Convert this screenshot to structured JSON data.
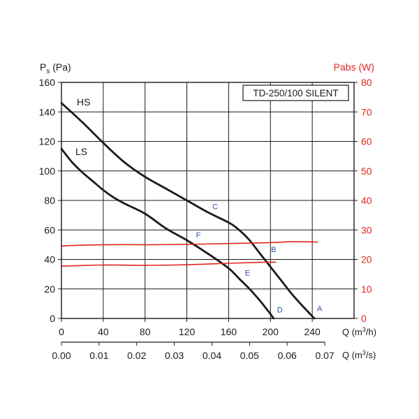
{
  "chart_data": {
    "type": "line",
    "title": "TD-250/100 SILENT",
    "left_axis": {
      "label": "Ps (Pa)",
      "label_main": "P",
      "label_sub": "s",
      "label_rest": " (Pa)",
      "range": [
        0,
        160
      ],
      "ticks": [
        0,
        20,
        40,
        60,
        80,
        100,
        120,
        140,
        160
      ]
    },
    "right_axis": {
      "label": "Pabs (W)",
      "range": [
        0,
        80
      ],
      "ticks": [
        0,
        10,
        20,
        30,
        40,
        50,
        60,
        70,
        80
      ],
      "color": "#e0261f"
    },
    "x_axis": {
      "label": "Q (m3/h)",
      "label_pre": "Q (m",
      "label_sup": "3",
      "label_post": "/h)",
      "range": [
        0,
        280
      ],
      "ticks": [
        0,
        40,
        80,
        120,
        160,
        200,
        240
      ]
    },
    "x2_axis": {
      "label": "Q (m3/s)",
      "label_pre": "Q (m",
      "label_sup": "3",
      "label_post": "/s)",
      "ticks": [
        "0.00",
        "0.01",
        "0.02",
        "0.03",
        "0.04",
        "0.05",
        "0.06",
        "0.07"
      ],
      "tick_values_m3h": [
        0,
        36,
        72,
        108,
        144,
        180,
        216,
        252
      ]
    },
    "grid": true,
    "series": [
      {
        "name": "HS",
        "axis": "left",
        "color": "#1a1a1a",
        "points": [
          [
            0,
            146
          ],
          [
            20,
            133
          ],
          [
            40,
            119
          ],
          [
            60,
            106
          ],
          [
            80,
            96
          ],
          [
            100,
            88
          ],
          [
            120,
            80
          ],
          [
            140,
            72
          ],
          [
            160,
            65
          ],
          [
            170,
            60
          ],
          [
            180,
            53
          ],
          [
            190,
            44
          ],
          [
            200,
            35
          ],
          [
            210,
            26
          ],
          [
            220,
            17
          ],
          [
            230,
            9
          ],
          [
            242,
            0
          ]
        ]
      },
      {
        "name": "LS",
        "axis": "left",
        "color": "#1a1a1a",
        "points": [
          [
            0,
            115
          ],
          [
            10,
            106
          ],
          [
            20,
            99
          ],
          [
            30,
            93
          ],
          [
            40,
            87
          ],
          [
            50,
            82
          ],
          [
            60,
            78
          ],
          [
            80,
            71
          ],
          [
            100,
            61
          ],
          [
            120,
            53
          ],
          [
            140,
            44
          ],
          [
            160,
            34
          ],
          [
            170,
            27
          ],
          [
            180,
            20
          ],
          [
            190,
            12
          ],
          [
            200,
            3
          ],
          [
            203,
            0
          ]
        ]
      },
      {
        "name": "",
        "axis": "right",
        "color": "#e0261f",
        "points": [
          [
            0,
            24.6
          ],
          [
            40,
            25.0
          ],
          [
            80,
            25.0
          ],
          [
            120,
            25.1
          ],
          [
            160,
            25.4
          ],
          [
            200,
            25.7
          ],
          [
            220,
            26.0
          ],
          [
            245,
            25.9
          ]
        ]
      },
      {
        "name": "",
        "axis": "right",
        "color": "#e0261f",
        "points": [
          [
            0,
            17.7
          ],
          [
            40,
            18.1
          ],
          [
            80,
            18.0
          ],
          [
            120,
            18.2
          ],
          [
            160,
            18.7
          ],
          [
            190,
            19.0
          ],
          [
            205,
            19.1
          ]
        ]
      }
    ],
    "point_labels": [
      {
        "text": "A",
        "x": 247,
        "y": 5,
        "axis": "left"
      },
      {
        "text": "B",
        "x": 203,
        "y": 45,
        "axis": "left"
      },
      {
        "text": "C",
        "x": 147,
        "y": 74,
        "axis": "left"
      },
      {
        "text": "D",
        "x": 209,
        "y": 4,
        "axis": "left"
      },
      {
        "text": "E",
        "x": 178,
        "y": 29,
        "axis": "left"
      },
      {
        "text": "F",
        "x": 131,
        "y": 55,
        "axis": "left"
      }
    ],
    "point_label_color": "#2e4fa8"
  }
}
